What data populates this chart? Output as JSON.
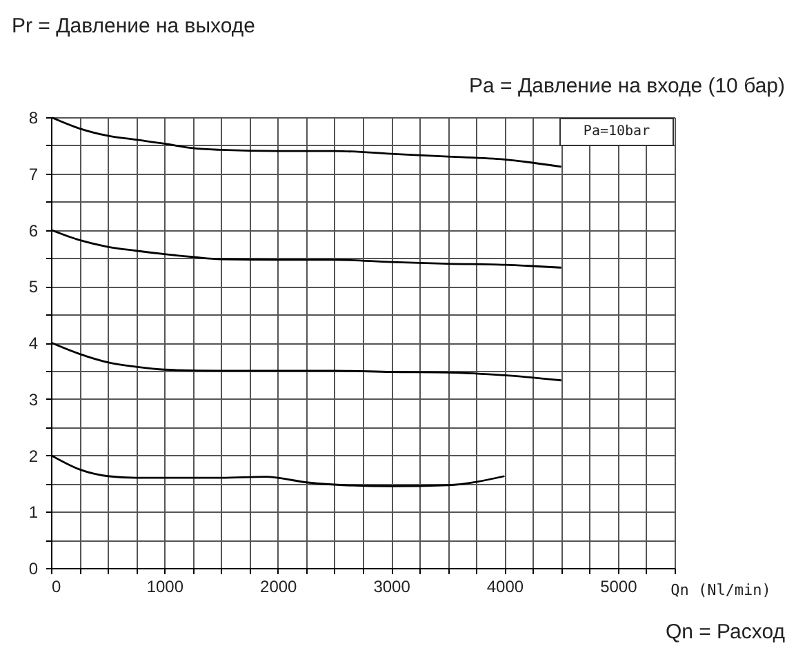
{
  "chart_data": {
    "type": "line",
    "title": "Pa = Давление на входе (10 бар)",
    "ylabel": "Pr = Давление на выходе",
    "xlabel": "Qn (Nl/min)",
    "annotations": [
      "Pa=10bar",
      "Qn = Расход"
    ],
    "xlim": [
      0,
      5500
    ],
    "ylim": [
      0,
      8
    ],
    "xticks": [
      0,
      {
        "value": 250,
        "label": null
      },
      {
        "value": 500,
        "label": null
      },
      {
        "value": 750,
        "label": null
      },
      1000,
      {
        "value": 1250,
        "label": null
      },
      {
        "value": 1500,
        "label": null
      },
      {
        "value": 1750,
        "label": null
      },
      2000,
      {
        "value": 2250,
        "label": null
      },
      {
        "value": 2500,
        "label": null
      },
      {
        "value": 2750,
        "label": null
      },
      3000,
      {
        "value": 3250,
        "label": null
      },
      {
        "value": 3500,
        "label": null
      },
      {
        "value": 3750,
        "label": null
      },
      4000,
      {
        "value": 4250,
        "label": null
      },
      {
        "value": 4500,
        "label": null
      },
      {
        "value": 4750,
        "label": null
      },
      5000,
      {
        "value": 5250,
        "label": null
      },
      {
        "value": 5500,
        "label": null
      }
    ],
    "yticks": [
      0,
      {
        "value": 0.5,
        "label": null
      },
      1,
      {
        "value": 1.5,
        "label": null
      },
      2,
      {
        "value": 2.5,
        "label": null
      },
      3,
      {
        "value": 3.5,
        "label": null
      },
      4,
      {
        "value": 4.5,
        "label": null
      },
      5,
      {
        "value": 5.5,
        "label": null
      },
      6,
      {
        "value": 6.5,
        "label": null
      },
      7,
      {
        "value": 7.5,
        "label": null
      },
      8
    ],
    "grid": true,
    "series": [
      {
        "color": "#000000",
        "x": [
          0,
          250,
          500,
          750,
          1000,
          1250,
          1500,
          2000,
          2500,
          3000,
          3500,
          4000,
          4500
        ],
        "values": [
          8.0,
          7.8,
          7.67,
          7.6,
          7.53,
          7.45,
          7.42,
          7.4,
          7.4,
          7.35,
          7.3,
          7.25,
          7.12
        ]
      },
      {
        "color": "#000000",
        "x": [
          0,
          250,
          500,
          750,
          1000,
          1250,
          1500,
          2000,
          2500,
          3000,
          3500,
          4000,
          4500
        ],
        "values": [
          6.0,
          5.82,
          5.7,
          5.63,
          5.57,
          5.52,
          5.48,
          5.47,
          5.47,
          5.43,
          5.4,
          5.38,
          5.33
        ]
      },
      {
        "color": "#000000",
        "x": [
          0,
          250,
          500,
          750,
          1000,
          1500,
          2000,
          2500,
          3000,
          3500,
          4000,
          4500
        ],
        "values": [
          4.0,
          3.8,
          3.65,
          3.57,
          3.52,
          3.5,
          3.5,
          3.5,
          3.48,
          3.47,
          3.42,
          3.33
        ]
      },
      {
        "color": "#000000",
        "x": [
          0,
          250,
          500,
          750,
          1000,
          1500,
          1900,
          2000,
          2250,
          2500,
          3000,
          3500,
          4000
        ],
        "values": [
          2.0,
          1.75,
          1.63,
          1.6,
          1.6,
          1.6,
          1.62,
          1.6,
          1.52,
          1.48,
          1.45,
          1.47,
          1.63
        ]
      }
    ]
  }
}
